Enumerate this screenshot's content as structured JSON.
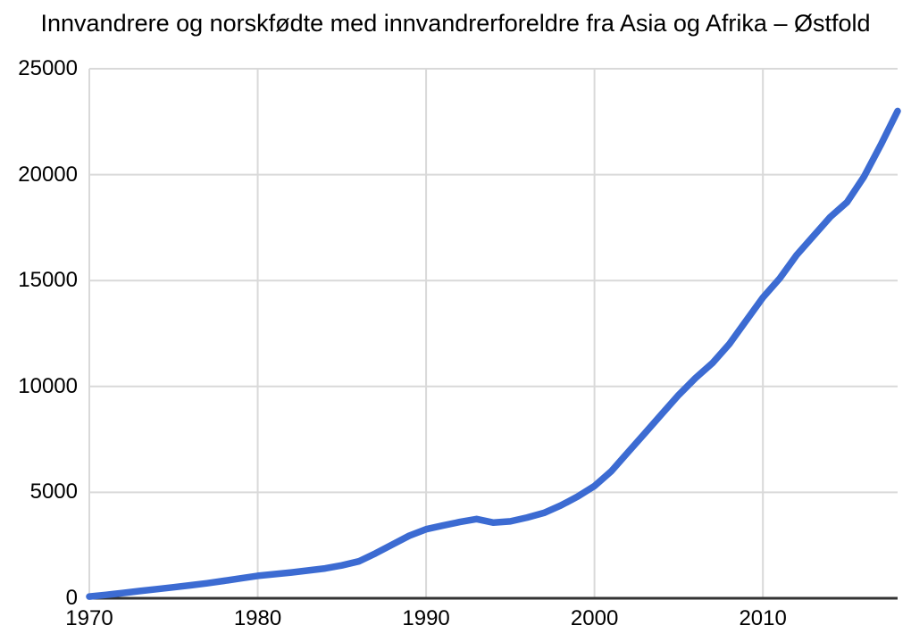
{
  "chart_data": {
    "type": "line",
    "title": "Innvandrere og norskfødte med innvandrerforeldre fra Asia og Afrika – Østfold",
    "xlabel": "",
    "ylabel": "",
    "xlim": [
      1970,
      2018
    ],
    "ylim": [
      0,
      25000
    ],
    "x_ticks": [
      1970,
      1980,
      1990,
      2000,
      2010
    ],
    "y_ticks": [
      0,
      5000,
      10000,
      15000,
      20000,
      25000
    ],
    "grid": true,
    "legend": "none",
    "x": [
      1970,
      1971,
      1972,
      1973,
      1974,
      1975,
      1976,
      1977,
      1978,
      1979,
      1980,
      1981,
      1982,
      1983,
      1984,
      1985,
      1986,
      1987,
      1988,
      1989,
      1990,
      1991,
      1992,
      1993,
      1994,
      1995,
      1996,
      1997,
      1998,
      1999,
      2000,
      2001,
      2002,
      2003,
      2004,
      2005,
      2006,
      2007,
      2008,
      2009,
      2010,
      2011,
      2012,
      2013,
      2014,
      2015,
      2016,
      2017,
      2018
    ],
    "series": [
      {
        "name": "Innvandrere og norskfødte med innvandrerforeldre fra Asia og Afrika – Østfold",
        "values": [
          80,
          160,
          250,
          340,
          430,
          520,
          610,
          710,
          820,
          940,
          1060,
          1140,
          1220,
          1310,
          1410,
          1550,
          1740,
          2120,
          2540,
          2950,
          3260,
          3430,
          3600,
          3740,
          3570,
          3630,
          3810,
          4030,
          4380,
          4800,
          5300,
          6000,
          6900,
          7800,
          8700,
          9600,
          10400,
          11100,
          12000,
          13100,
          14200,
          15100,
          16200,
          17100,
          18000,
          18700,
          19900,
          21400,
          23000
        ]
      }
    ],
    "colors": {
      "line": "#3C6BD2",
      "grid": "#D9D9D9",
      "axis": "#333333",
      "text": "#000000",
      "background": "#FFFFFF"
    }
  }
}
